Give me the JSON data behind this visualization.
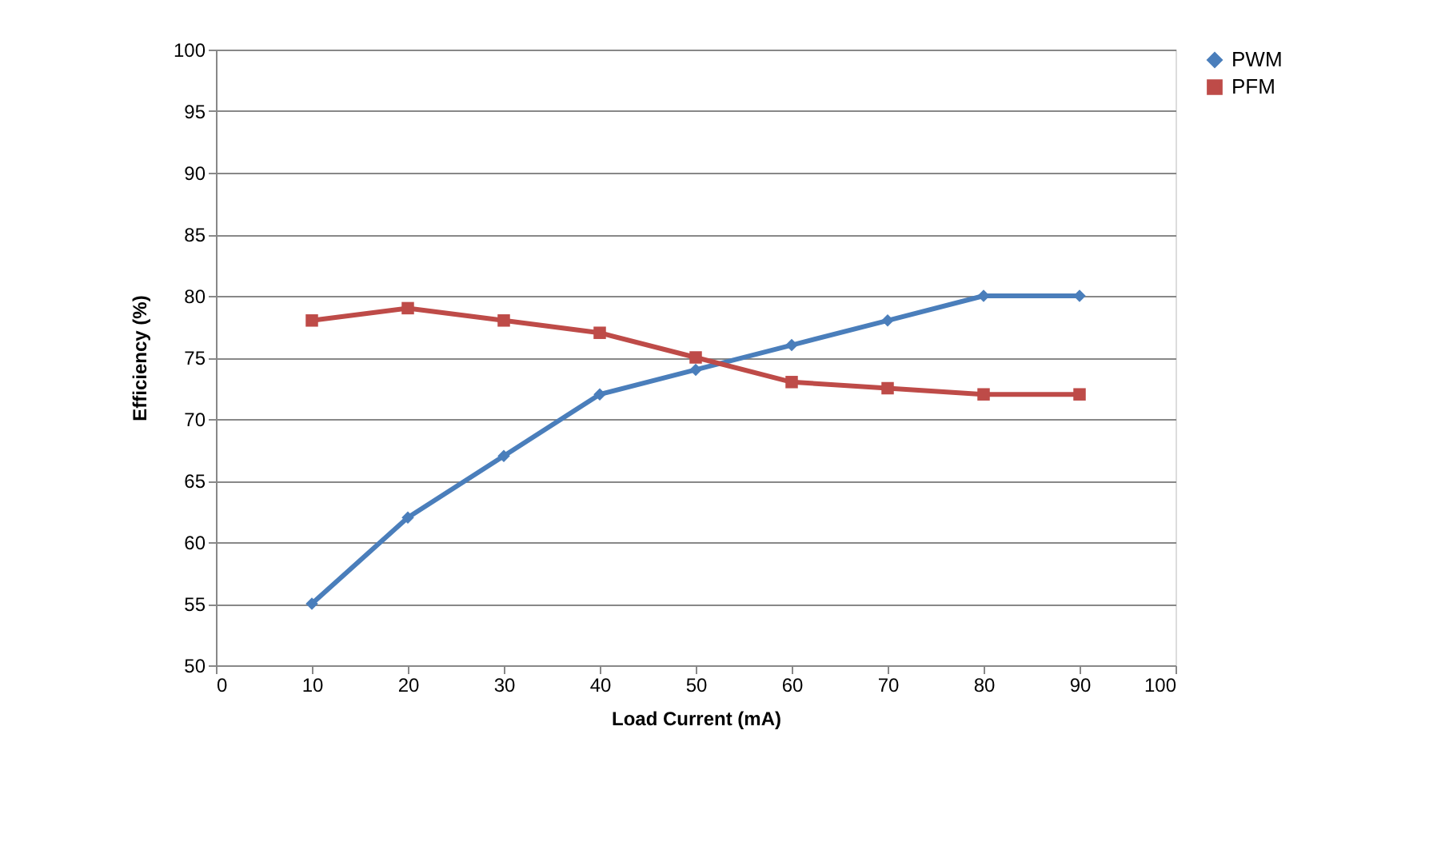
{
  "chart_data": {
    "type": "line",
    "xlabel": "Load Current (mA)",
    "ylabel": "Efficiency (%)",
    "x": [
      10,
      20,
      30,
      40,
      50,
      60,
      70,
      80,
      90
    ],
    "series": [
      {
        "name": "PWM",
        "color": "#4a7ebb",
        "marker": "diamond",
        "values": [
          55,
          62,
          67,
          72,
          74,
          76,
          78,
          80,
          80
        ]
      },
      {
        "name": "PFM",
        "color": "#be4b48",
        "marker": "square",
        "values": [
          78,
          79,
          78,
          77,
          75,
          73,
          72.5,
          72,
          72
        ]
      }
    ],
    "xlim": [
      0,
      100
    ],
    "xticks": [
      0,
      10,
      20,
      30,
      40,
      50,
      60,
      70,
      80,
      90,
      100
    ],
    "ylim": [
      50,
      100
    ],
    "yticks": [
      50,
      55,
      60,
      65,
      70,
      75,
      80,
      85,
      90,
      95,
      100
    ],
    "grid": "y",
    "legend": "right",
    "line_style": "solid"
  }
}
